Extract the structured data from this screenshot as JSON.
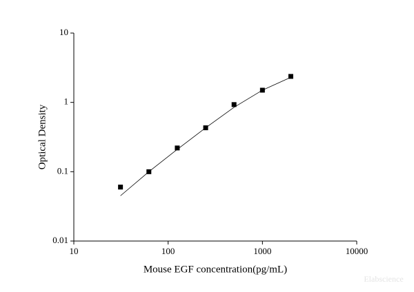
{
  "chart_data": {
    "type": "scatter",
    "log_x": true,
    "log_y": true,
    "xlabel": "Mouse EGF concentration(pg/mL)",
    "ylabel": "Optical Density",
    "watermark": "Elabscience",
    "x": [
      31.25,
      62.5,
      125,
      250,
      500,
      1000,
      2000
    ],
    "values": [
      0.06,
      0.1,
      0.22,
      0.43,
      0.93,
      1.5,
      2.37
    ],
    "color": "#000000",
    "fit": {
      "x": [
        31.25,
        62.5,
        125,
        250,
        500,
        1000,
        2000
      ],
      "values": [
        0.045,
        0.1,
        0.21,
        0.43,
        0.85,
        1.5,
        2.3
      ]
    },
    "xlim": [
      10,
      10000
    ],
    "xticks": [
      10,
      100,
      1000,
      10000
    ],
    "ylim": [
      0.01,
      10
    ],
    "yticks": [
      0.01,
      0.1,
      1,
      10
    ]
  }
}
